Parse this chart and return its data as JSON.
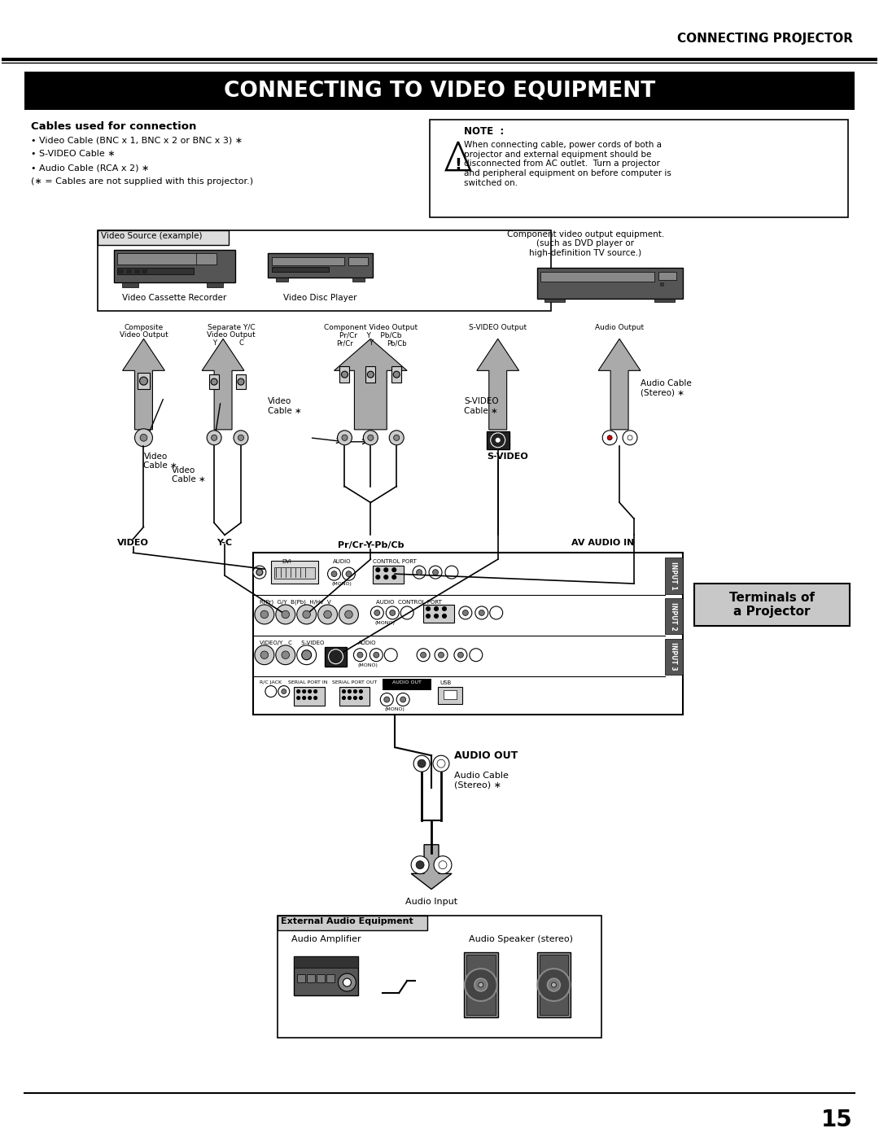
{
  "page_title_header": "CONNECTING PROJECTOR",
  "main_title": "CONNECTING TO VIDEO EQUIPMENT",
  "section_title": "Cables used for connection",
  "bullets": [
    "• Video Cable (BNC x 1, BNC x 2 or BNC x 3) ∗",
    "• S-VIDEO Cable ∗",
    "• Audio Cable (RCA x 2) ∗",
    "(∗ = Cables are not supplied with this projector.)"
  ],
  "note_title": "NOTE  :",
  "note_text": "When connecting cable, power cords of both a\nprojector and external equipment should be\ndisconnected from AC outlet.  Turn a projector\nand peripheral equipment on before computer is\nswitched on.",
  "video_source_box_title": "Video Source (example)",
  "video_source_items": [
    "Video Cassette Recorder",
    "Video Disc Player"
  ],
  "component_label": "Component video output equipment.\n(such as DVD player or\nhigh-definition TV source.)",
  "labels_top": [
    "Composite\nVideo Output",
    "Separate Y/C\nVideo Output",
    "Component Video Output",
    "Pr/Cr    Y    Pb/Cb",
    "S-VIDEO Output",
    "Audio Output"
  ],
  "terminals_label": "Terminals of\na Projector",
  "audio_out_label": "AUDIO OUT",
  "audio_cable_label2": "Audio Cable\n(Stereo) ∗",
  "audio_input_label": "Audio Input",
  "external_audio_title": "External Audio Equipment",
  "external_audio_items": [
    "Audio Amplifier",
    "Audio Speaker (stereo)"
  ],
  "page_number": "15",
  "bg_color": "#ffffff",
  "terminals_bg": "#c8c8c8",
  "gray_arrow": "#aaaaaa"
}
